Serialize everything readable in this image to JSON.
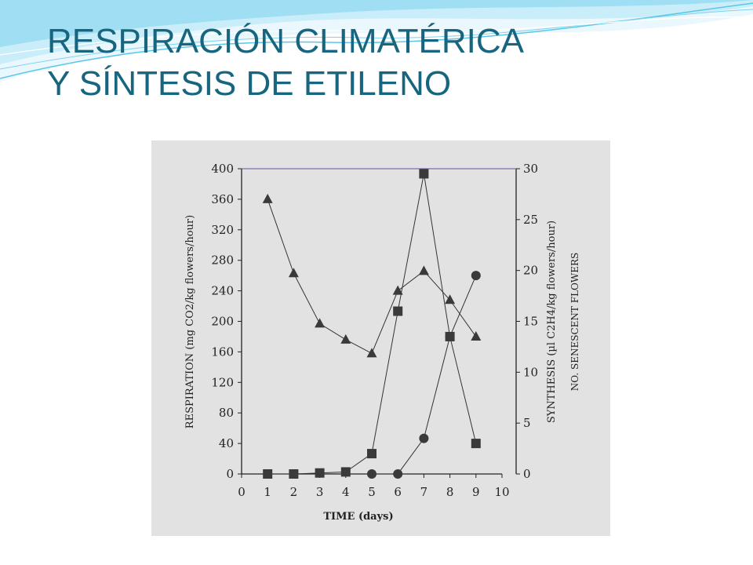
{
  "title": {
    "line1": "RESPIRACIÓN CLIMATÉRICA",
    "line2": "Y SÍNTESIS DE ETILENO"
  },
  "colors": {
    "title": "#17657f",
    "wave": "#5bc6e8",
    "scan_bg": "#e2e2e2",
    "ink": "#222222"
  },
  "chart_data": {
    "type": "line",
    "xlabel": "TIME (days)",
    "ylabel": "RESPIRATION (mg CO2/kg flowers/hour)",
    "y2label": "SYNTHESIS (µl C2H4/kg flowers/hour)",
    "y2label2": "NO. SENESCENT FLOWERS",
    "xlim": [
      0,
      10
    ],
    "ylim": [
      0,
      400
    ],
    "y2lim": [
      0,
      30
    ],
    "x_ticks": [
      "0",
      "1",
      "2",
      "3",
      "4",
      "5",
      "6",
      "7",
      "8",
      "9",
      "10"
    ],
    "y_ticks": [
      "0",
      "40",
      "80",
      "120",
      "160",
      "200",
      "240",
      "280",
      "320",
      "360",
      "400"
    ],
    "y2_ticks": [
      "0",
      "5",
      "10",
      "15",
      "20",
      "25",
      "30"
    ],
    "series": [
      {
        "marker": "triangle",
        "axis": "left",
        "x": [
          1,
          2,
          3,
          4,
          5,
          6,
          7,
          8,
          9
        ],
        "y": [
          360,
          263,
          197,
          176,
          158,
          240,
          266,
          228,
          180
        ]
      },
      {
        "marker": "square",
        "axis": "right",
        "x": [
          1,
          2,
          3,
          4,
          5,
          6,
          7,
          8,
          9
        ],
        "y": [
          0,
          0,
          0.1,
          0.2,
          2,
          16,
          29.5,
          13.5,
          3
        ]
      },
      {
        "marker": "circle",
        "axis": "right",
        "x": [
          5,
          6,
          7,
          8,
          9
        ],
        "y": [
          0,
          0,
          3.5,
          13.5,
          19.5
        ]
      }
    ]
  }
}
